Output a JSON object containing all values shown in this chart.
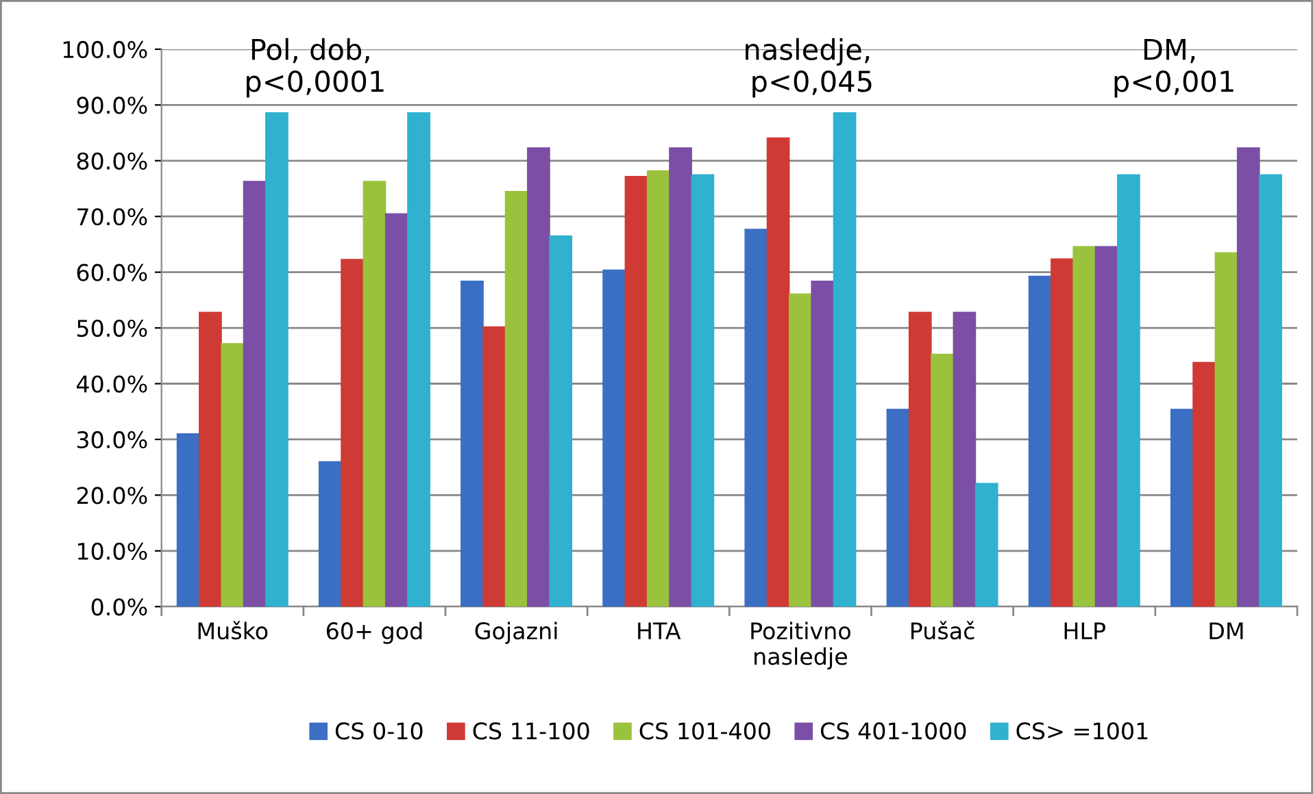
{
  "chart_data": {
    "type": "bar",
    "categories": [
      "Muško",
      "60+ god",
      "Gojazni",
      "HTA",
      "Pozitivno\nnasledje",
      "Pušač",
      "HLP",
      "DM"
    ],
    "series": [
      {
        "name": "CS 0-10",
        "color": "#3a6fc4",
        "values": [
          31,
          26,
          58.4,
          60.4,
          67.7,
          35.4,
          59.3,
          35.4
        ]
      },
      {
        "name": "CS 11-100",
        "color": "#d03a34",
        "values": [
          52.8,
          62.3,
          50.2,
          77.2,
          84.1,
          52.8,
          62.4,
          43.8
        ]
      },
      {
        "name": "CS 101-400",
        "color": "#9bc23c",
        "values": [
          47.2,
          76.3,
          74.5,
          78.2,
          56.1,
          45.3,
          64.6,
          63.5
        ]
      },
      {
        "name": "CS 401-1000",
        "color": "#7b4fa6",
        "values": [
          76.3,
          70.5,
          82.3,
          82.3,
          58.4,
          52.8,
          64.6,
          82.3
        ]
      },
      {
        "name": "CS> =1001",
        "color": "#2fb1cf",
        "values": [
          88.6,
          88.6,
          66.5,
          77.5,
          88.6,
          22.1,
          77.5,
          77.5
        ]
      }
    ],
    "ylim": [
      0,
      100
    ],
    "yticks": [
      {
        "value": 0,
        "label": "0.0%"
      },
      {
        "value": 10,
        "label": "10.0%"
      },
      {
        "value": 20,
        "label": "20.0%"
      },
      {
        "value": 30,
        "label": "30.0%"
      },
      {
        "value": 40,
        "label": "40.0%"
      },
      {
        "value": 50,
        "label": "50.0%"
      },
      {
        "value": 60,
        "label": "60.0%"
      },
      {
        "value": 70,
        "label": "70.0%"
      },
      {
        "value": 80,
        "label": "80.0%"
      },
      {
        "value": 90,
        "label": "90.0%"
      },
      {
        "value": 100,
        "label": "100.0%"
      }
    ],
    "grid": "y",
    "legend": "bottom",
    "annotations": [
      "Pol, dob,\n p<0,0001",
      "nasledje,\n p<0,045",
      "DM,\n p<0,001"
    ]
  }
}
